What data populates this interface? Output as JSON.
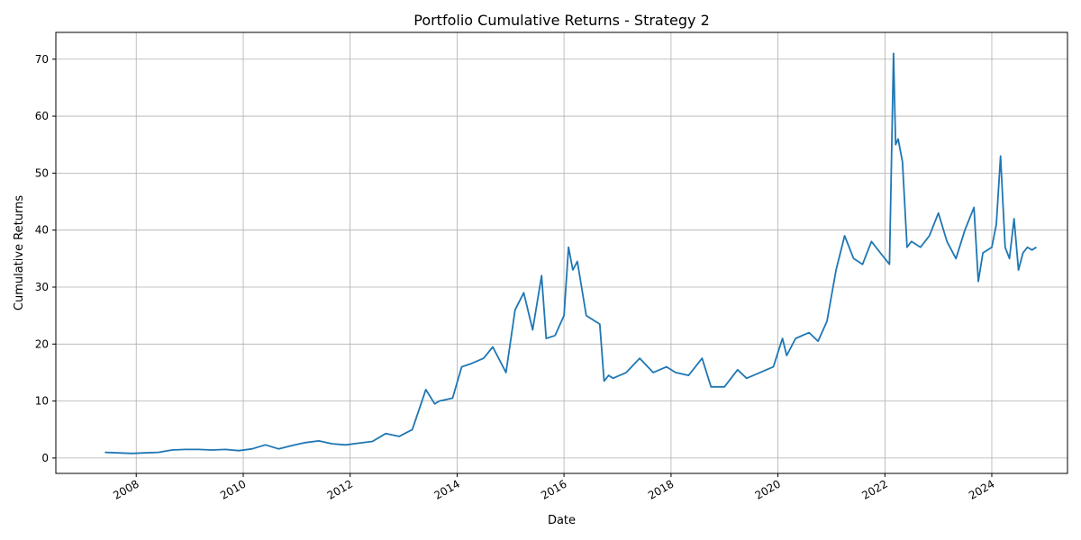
{
  "chart_data": {
    "type": "line",
    "title": "Portfolio Cumulative Returns - Strategy 2",
    "xlabel": "Date",
    "ylabel": "Cumulative Returns",
    "x_tick_labels": [
      "2008",
      "2010",
      "2012",
      "2014",
      "2016",
      "2018",
      "2020",
      "2022",
      "2024"
    ],
    "y_tick_labels": [
      "0",
      "10",
      "20",
      "30",
      "40",
      "50",
      "60",
      "70"
    ],
    "xlim": [
      "2006-07-01",
      "2025-06-01"
    ],
    "ylim": [
      -2.7,
      74.7
    ],
    "grid": true,
    "legend": "none",
    "series": [
      {
        "color": "#1f77b4",
        "x": [
          "2007-06-01",
          "2007-09-01",
          "2007-12-01",
          "2008-03-01",
          "2008-06-01",
          "2008-09-01",
          "2008-12-01",
          "2009-03-01",
          "2009-06-01",
          "2009-09-01",
          "2009-12-01",
          "2010-03-01",
          "2010-06-01",
          "2010-09-01",
          "2010-12-01",
          "2011-03-01",
          "2011-06-01",
          "2011-09-01",
          "2011-12-01",
          "2012-03-01",
          "2012-06-01",
          "2012-09-01",
          "2012-12-01",
          "2013-03-01",
          "2013-06-01",
          "2013-08-01",
          "2013-09-01",
          "2013-12-01",
          "2014-02-01",
          "2014-04-01",
          "2014-07-01",
          "2014-09-01",
          "2014-12-01",
          "2015-02-01",
          "2015-04-01",
          "2015-06-01",
          "2015-08-01",
          "2015-09-01",
          "2015-11-01",
          "2016-01-01",
          "2016-02-01",
          "2016-03-01",
          "2016-04-01",
          "2016-06-01",
          "2016-07-01",
          "2016-09-01",
          "2016-10-01",
          "2016-11-01",
          "2016-12-01",
          "2017-03-01",
          "2017-06-01",
          "2017-09-01",
          "2017-12-01",
          "2018-02-01",
          "2018-05-01",
          "2018-08-01",
          "2018-10-01",
          "2019-01-01",
          "2019-04-01",
          "2019-06-01",
          "2019-09-01",
          "2019-12-01",
          "2020-02-01",
          "2020-03-01",
          "2020-05-01",
          "2020-08-01",
          "2020-10-01",
          "2020-12-01",
          "2021-02-01",
          "2021-04-01",
          "2021-06-01",
          "2021-08-01",
          "2021-10-01",
          "2021-12-01",
          "2022-02-01",
          "2022-03-01",
          "2022-03-15",
          "2022-04-01",
          "2022-05-01",
          "2022-06-01",
          "2022-07-01",
          "2022-09-01",
          "2022-11-01",
          "2023-01-01",
          "2023-03-01",
          "2023-05-01",
          "2023-07-01",
          "2023-09-01",
          "2023-10-01",
          "2023-11-01",
          "2024-01-01",
          "2024-02-01",
          "2024-03-01",
          "2024-04-01",
          "2024-05-01",
          "2024-06-01",
          "2024-07-01",
          "2024-08-01",
          "2024-09-01",
          "2024-10-01",
          "2024-11-01"
        ],
        "y": [
          1.0,
          0.9,
          0.8,
          0.9,
          1.0,
          1.4,
          1.5,
          1.5,
          1.4,
          1.5,
          1.3,
          1.6,
          2.3,
          1.6,
          2.2,
          2.7,
          3.0,
          2.5,
          2.3,
          2.6,
          2.9,
          4.3,
          3.8,
          5.0,
          12.0,
          9.5,
          10.0,
          10.5,
          16.0,
          16.5,
          17.5,
          19.5,
          15.0,
          26.0,
          29.0,
          22.5,
          32.0,
          21.0,
          21.5,
          25.0,
          37.0,
          33.0,
          34.5,
          25.0,
          24.5,
          23.5,
          13.5,
          14.5,
          14.0,
          15.0,
          17.5,
          15.0,
          16.0,
          15.0,
          14.5,
          17.5,
          12.5,
          12.5,
          15.5,
          14.0,
          15.0,
          16.0,
          21.0,
          18.0,
          21.0,
          22.0,
          20.5,
          24.0,
          33.0,
          39.0,
          35.0,
          34.0,
          38.0,
          36.0,
          34.0,
          71.0,
          55.0,
          56.0,
          52.0,
          37.0,
          38.0,
          37.0,
          39.0,
          43.0,
          38.0,
          35.0,
          40.0,
          44.0,
          31.0,
          36.0,
          37.0,
          41.0,
          53.0,
          37.0,
          35.0,
          42.0,
          33.0,
          36.0,
          37.0,
          36.5,
          37.0
        ]
      }
    ]
  }
}
